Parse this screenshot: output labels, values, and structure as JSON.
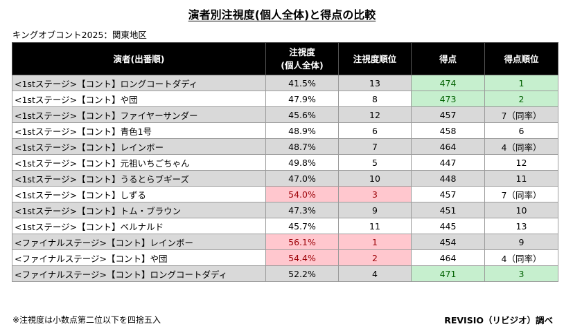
{
  "title": "演者別注視度(個人全体)と得点の比較",
  "subtitle": "キングオブコント2025：関東地区",
  "headers": {
    "performer": "演者(出番順)",
    "attention_line1": "注視度",
    "attention_line2": "(個人全体)",
    "attention_rank": "注視度順位",
    "score": "得点",
    "score_rank": "得点順位"
  },
  "rows": [
    {
      "name": "<1stステージ>【コント】ロングコートダディ",
      "attention": "41.5%",
      "attention_rank": "13",
      "score": "474",
      "score_rank": "1",
      "gray": true,
      "hl_attention": "",
      "hl_score": "green"
    },
    {
      "name": "<1stステージ>【コント】や団",
      "attention": "47.9%",
      "attention_rank": "8",
      "score": "473",
      "score_rank": "2",
      "gray": false,
      "hl_attention": "",
      "hl_score": "green"
    },
    {
      "name": "<1stステージ>【コント】ファイヤーサンダー",
      "attention": "45.6%",
      "attention_rank": "12",
      "score": "457",
      "score_rank": "7（同率）",
      "gray": true,
      "hl_attention": "",
      "hl_score": ""
    },
    {
      "name": "<1stステージ>【コント】青色1号",
      "attention": "48.9%",
      "attention_rank": "6",
      "score": "458",
      "score_rank": "6",
      "gray": false,
      "hl_attention": "",
      "hl_score": ""
    },
    {
      "name": "<1stステージ>【コント】レインボー",
      "attention": "48.7%",
      "attention_rank": "7",
      "score": "464",
      "score_rank": "4（同率）",
      "gray": true,
      "hl_attention": "",
      "hl_score": ""
    },
    {
      "name": "<1stステージ>【コント】元祖いちごちゃん",
      "attention": "49.8%",
      "attention_rank": "5",
      "score": "447",
      "score_rank": "12",
      "gray": false,
      "hl_attention": "",
      "hl_score": ""
    },
    {
      "name": "<1stステージ>【コント】うるとらブギーズ",
      "attention": "47.0%",
      "attention_rank": "10",
      "score": "448",
      "score_rank": "11",
      "gray": true,
      "hl_attention": "",
      "hl_score": ""
    },
    {
      "name": "<1stステージ>【コント】しずる",
      "attention": "54.0%",
      "attention_rank": "3",
      "score": "457",
      "score_rank": "7（同率）",
      "gray": false,
      "hl_attention": "red",
      "hl_score": ""
    },
    {
      "name": "<1stステージ>【コント】トム・ブラウン",
      "attention": "47.3%",
      "attention_rank": "9",
      "score": "451",
      "score_rank": "10",
      "gray": true,
      "hl_attention": "",
      "hl_score": ""
    },
    {
      "name": "<1stステージ>【コント】ベルナルド",
      "attention": "45.7%",
      "attention_rank": "11",
      "score": "445",
      "score_rank": "13",
      "gray": false,
      "hl_attention": "",
      "hl_score": ""
    },
    {
      "name": "<ファイナルステージ>【コント】レインボー",
      "attention": "56.1%",
      "attention_rank": "1",
      "score": "454",
      "score_rank": "9",
      "gray": true,
      "hl_attention": "red",
      "hl_score": ""
    },
    {
      "name": "<ファイナルステージ>【コント】や団",
      "attention": "54.4%",
      "attention_rank": "2",
      "score": "464",
      "score_rank": "4（同率）",
      "gray": false,
      "hl_attention": "red",
      "hl_score": ""
    },
    {
      "name": "<ファイナルステージ>【コント】ロングコートダディ",
      "attention": "52.2%",
      "attention_rank": "4",
      "score": "471",
      "score_rank": "3",
      "gray": true,
      "hl_attention": "",
      "hl_score": "green"
    }
  ],
  "footnote": "※注視度は小数点第二位以下を四捨五入",
  "credit": "REVISIO（リビジオ）調べ",
  "colors": {
    "header_bg": "#000000",
    "row_gray": "#d9d9d9",
    "highlight_red_bg": "#ffc7ce",
    "highlight_red_text": "#9c0006",
    "highlight_green_bg": "#c6efce",
    "highlight_green_text": "#006100"
  }
}
